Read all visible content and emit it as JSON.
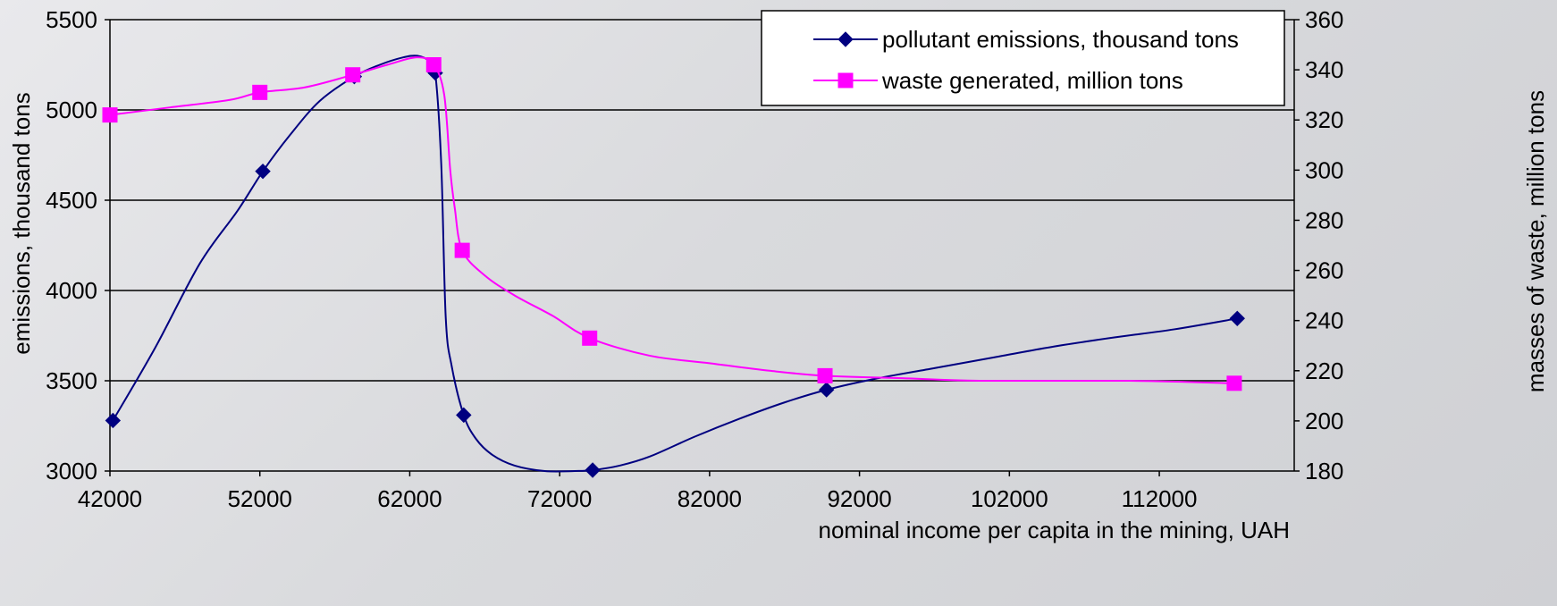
{
  "chart_data": {
    "type": "line",
    "xlabel": "nominal income per capita in the mining, UAH",
    "ylabel_left": "emissions, thousand tons",
    "ylabel_right": "masses of waste, million tons",
    "xlim": [
      42000,
      121000
    ],
    "ylim_left": [
      3000,
      5500
    ],
    "ylim_right": [
      180,
      360
    ],
    "x_ticks": [
      42000,
      52000,
      62000,
      72000,
      82000,
      92000,
      102000,
      112000
    ],
    "y_left_ticks": [
      3000,
      3500,
      4000,
      4500,
      5000,
      5500
    ],
    "y_right_ticks": [
      180,
      200,
      220,
      240,
      260,
      280,
      300,
      320,
      340,
      360
    ],
    "grid": "horizontal",
    "legend_position": "top-right",
    "series": [
      {
        "name": "pollutant emissions, thousand tons",
        "axis": "left",
        "color": "#000080",
        "marker": "diamond",
        "points": [
          [
            42200,
            3280
          ],
          [
            52200,
            4660
          ],
          [
            58300,
            5185
          ],
          [
            63700,
            5205
          ],
          [
            65600,
            3310
          ],
          [
            74200,
            3005
          ],
          [
            89800,
            3450
          ],
          [
            117200,
            3845
          ]
        ],
        "curve": [
          [
            42200,
            3280
          ],
          [
            45000,
            3680
          ],
          [
            48000,
            4150
          ],
          [
            50500,
            4440
          ],
          [
            52200,
            4660
          ],
          [
            54000,
            4860
          ],
          [
            56000,
            5050
          ],
          [
            58300,
            5185
          ],
          [
            60000,
            5250
          ],
          [
            61500,
            5290
          ],
          [
            62500,
            5300
          ],
          [
            63300,
            5270
          ],
          [
            63700,
            5205
          ],
          [
            64100,
            4700
          ],
          [
            64400,
            3850
          ],
          [
            64800,
            3580
          ],
          [
            65600,
            3310
          ],
          [
            66400,
            3180
          ],
          [
            67500,
            3090
          ],
          [
            69000,
            3030
          ],
          [
            71000,
            3000
          ],
          [
            73000,
            3000
          ],
          [
            74200,
            3005
          ],
          [
            76000,
            3030
          ],
          [
            78000,
            3080
          ],
          [
            81000,
            3190
          ],
          [
            84000,
            3290
          ],
          [
            87000,
            3380
          ],
          [
            89800,
            3450
          ],
          [
            93000,
            3510
          ],
          [
            97000,
            3570
          ],
          [
            101000,
            3630
          ],
          [
            105000,
            3690
          ],
          [
            109000,
            3740
          ],
          [
            113000,
            3785
          ],
          [
            117200,
            3845
          ]
        ]
      },
      {
        "name": "waste generated, million tons",
        "axis": "right",
        "color": "#ff00ff",
        "marker": "square",
        "points": [
          [
            42000,
            322
          ],
          [
            52000,
            331
          ],
          [
            58200,
            338
          ],
          [
            63600,
            342
          ],
          [
            65500,
            268
          ],
          [
            74000,
            233
          ],
          [
            89700,
            218
          ],
          [
            117000,
            215
          ]
        ],
        "curve": [
          [
            42000,
            322
          ],
          [
            46000,
            325
          ],
          [
            50000,
            328
          ],
          [
            52000,
            331
          ],
          [
            55000,
            333
          ],
          [
            58200,
            338
          ],
          [
            60500,
            342
          ],
          [
            62500,
            345
          ],
          [
            63600,
            342
          ],
          [
            64300,
            330
          ],
          [
            64700,
            300
          ],
          [
            65000,
            285
          ],
          [
            65500,
            268
          ],
          [
            67000,
            258
          ],
          [
            69000,
            250
          ],
          [
            71500,
            242
          ],
          [
            74000,
            233
          ],
          [
            78000,
            226
          ],
          [
            82000,
            223
          ],
          [
            86000,
            220
          ],
          [
            89700,
            218
          ],
          [
            95000,
            217
          ],
          [
            100000,
            216
          ],
          [
            110000,
            216
          ],
          [
            117000,
            215
          ]
        ]
      }
    ]
  }
}
